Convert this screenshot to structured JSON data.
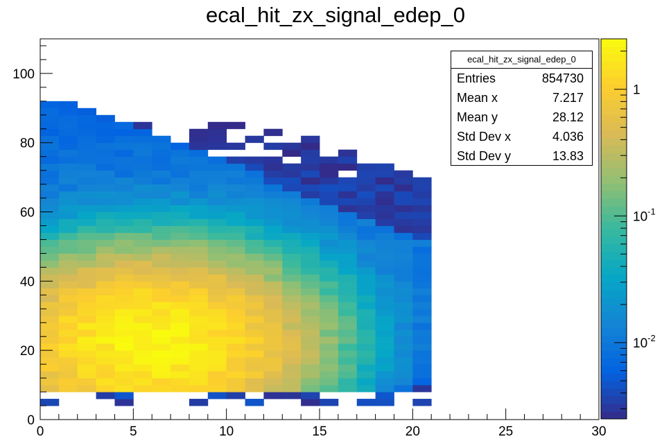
{
  "chart_data": {
    "type": "heatmap",
    "title": "ecal_hit_zx_signal_edep_0",
    "xlabel": "",
    "ylabel": "",
    "xlim": [
      0,
      30
    ],
    "ylim": [
      0,
      110
    ],
    "zlog": true,
    "zlim": [
      0.0025,
      2.5
    ],
    "x_ticks": [
      0,
      5,
      10,
      15,
      20,
      25,
      30
    ],
    "y_ticks": [
      0,
      20,
      40,
      60,
      80,
      100
    ],
    "z_ticks": [
      "1",
      "10",
      "10"
    ],
    "z_tick_exp": [
      "",
      "-1",
      "-2"
    ],
    "z_tick_values": [
      1,
      0.1,
      0.01
    ],
    "bin_width_x": 1,
    "bin_width_y": 2,
    "peak_density": {
      "x": 6,
      "y": 22,
      "value": 2.2
    },
    "occupied_x_range": [
      0,
      21
    ],
    "palette": [
      "#352a87",
      "#0363e1",
      "#1485d4",
      "#06a7c6",
      "#38b99e",
      "#92bf73",
      "#d9ba56",
      "#fcce2e",
      "#f9fb0e"
    ],
    "stats": {
      "name": "ecal_hit_zx_signal_edep_0",
      "rows": [
        {
          "label": "Entries",
          "value": "854730"
        },
        {
          "label": "Mean x",
          "value": "7.217"
        },
        {
          "label": "Mean y",
          "value": "28.12"
        },
        {
          "label": "Std Dev x",
          "value": "4.036"
        },
        {
          "label": "Std Dev y",
          "value": "13.83"
        }
      ]
    }
  }
}
